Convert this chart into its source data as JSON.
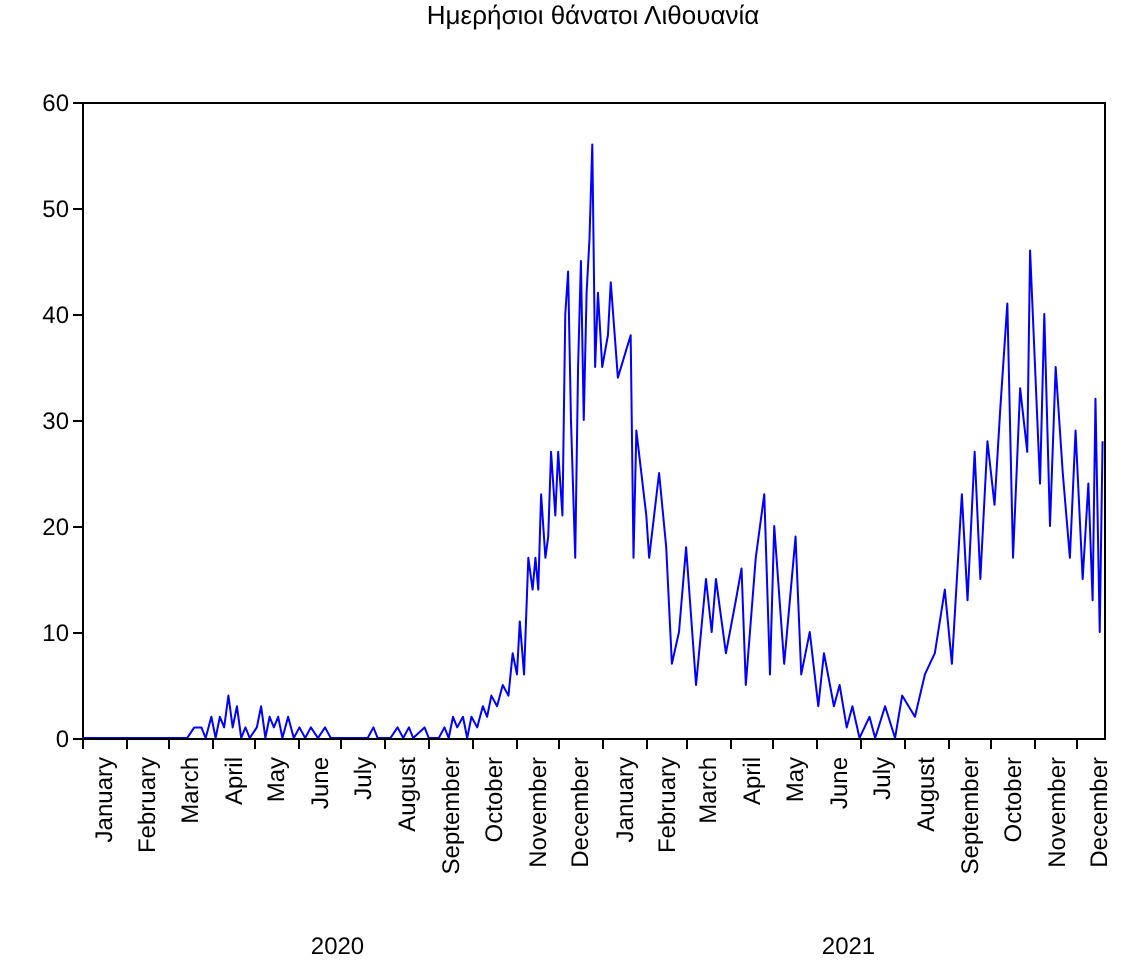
{
  "chart_data": {
    "type": "line",
    "title": "Ημερήσιοι θάνατοι Λιθουανία",
    "x": [
      "2020-01-01",
      "2020-02-01",
      "2020-03-01",
      "2020-03-15",
      "2020-03-20",
      "2020-03-25",
      "2020-03-28",
      "2020-04-01",
      "2020-04-04",
      "2020-04-07",
      "2020-04-10",
      "2020-04-13",
      "2020-04-16",
      "2020-04-19",
      "2020-04-22",
      "2020-04-25",
      "2020-04-28",
      "2020-05-03",
      "2020-05-06",
      "2020-05-09",
      "2020-05-12",
      "2020-05-15",
      "2020-05-18",
      "2020-05-21",
      "2020-05-25",
      "2020-05-29",
      "2020-06-02",
      "2020-06-06",
      "2020-06-10",
      "2020-06-15",
      "2020-06-20",
      "2020-06-24",
      "2020-07-01",
      "2020-07-20",
      "2020-07-24",
      "2020-07-27",
      "2020-08-05",
      "2020-08-10",
      "2020-08-14",
      "2020-08-18",
      "2020-08-21",
      "2020-08-29",
      "2020-09-01",
      "2020-09-08",
      "2020-09-12",
      "2020-09-15",
      "2020-09-18",
      "2020-09-21",
      "2020-09-25",
      "2020-09-28",
      "2020-10-01",
      "2020-10-05",
      "2020-10-09",
      "2020-10-12",
      "2020-10-15",
      "2020-10-19",
      "2020-10-23",
      "2020-10-27",
      "2020-10-30",
      "2020-11-02",
      "2020-11-04",
      "2020-11-07",
      "2020-11-10",
      "2020-11-13",
      "2020-11-15",
      "2020-11-17",
      "2020-11-19",
      "2020-11-22",
      "2020-11-24",
      "2020-11-26",
      "2020-11-29",
      "2020-12-01",
      "2020-12-04",
      "2020-12-06",
      "2020-12-08",
      "2020-12-10",
      "2020-12-13",
      "2020-12-15",
      "2020-12-17",
      "2020-12-19",
      "2020-12-21",
      "2020-12-23",
      "2020-12-25",
      "2020-12-27",
      "2020-12-29",
      "2021-01-01",
      "2021-01-05",
      "2021-01-07",
      "2021-01-12",
      "2021-01-21",
      "2021-01-23",
      "2021-01-25",
      "2021-02-01",
      "2021-02-03",
      "2021-02-10",
      "2021-02-15",
      "2021-02-19",
      "2021-02-24",
      "2021-03-01",
      "2021-03-08",
      "2021-03-15",
      "2021-03-19",
      "2021-03-22",
      "2021-03-29",
      "2021-04-05",
      "2021-04-09",
      "2021-04-12",
      "2021-04-19",
      "2021-04-25",
      "2021-04-29",
      "2021-05-02",
      "2021-05-09",
      "2021-05-17",
      "2021-05-21",
      "2021-05-27",
      "2021-06-02",
      "2021-06-06",
      "2021-06-13",
      "2021-06-17",
      "2021-06-22",
      "2021-06-26",
      "2021-07-01",
      "2021-07-08",
      "2021-07-12",
      "2021-07-19",
      "2021-07-26",
      "2021-07-31",
      "2021-08-09",
      "2021-08-16",
      "2021-08-23",
      "2021-08-30",
      "2021-09-04",
      "2021-09-11",
      "2021-09-15",
      "2021-09-20",
      "2021-09-24",
      "2021-09-29",
      "2021-10-04",
      "2021-10-08",
      "2021-10-13",
      "2021-10-17",
      "2021-10-22",
      "2021-10-27",
      "2021-10-29",
      "2021-11-05",
      "2021-11-08",
      "2021-11-12",
      "2021-11-16",
      "2021-11-21",
      "2021-11-26",
      "2021-11-30",
      "2021-12-05",
      "2021-12-09",
      "2021-12-12",
      "2021-12-14",
      "2021-12-17",
      "2021-12-19"
    ],
    "series": [
      {
        "color": "#0000ff",
        "values": [
          0,
          0,
          0,
          0,
          1,
          1,
          0,
          2,
          0,
          2,
          1,
          4,
          1,
          3,
          0,
          1,
          0,
          1,
          3,
          0,
          2,
          1,
          2,
          0,
          2,
          0,
          1,
          0,
          1,
          0,
          1,
          0,
          0,
          0,
          1,
          0,
          0,
          1,
          0,
          1,
          0,
          1,
          0,
          0,
          1,
          0,
          2,
          1,
          2,
          0,
          2,
          1,
          3,
          2,
          4,
          3,
          5,
          4,
          8,
          6,
          11,
          6,
          17,
          14,
          17,
          14,
          23,
          17,
          19,
          27,
          21,
          27,
          21,
          40,
          44,
          30,
          17,
          35,
          45,
          30,
          42,
          47,
          56,
          35,
          42,
          35,
          38,
          43,
          34,
          38,
          17,
          29,
          21,
          17,
          25,
          18,
          7,
          10,
          18,
          5,
          15,
          10,
          15,
          8,
          13,
          16,
          5,
          17,
          23,
          6,
          20,
          7,
          19,
          6,
          10,
          3,
          8,
          3,
          5,
          1,
          3,
          0,
          2,
          0,
          3,
          0,
          4,
          2,
          6,
          8,
          14,
          7,
          23,
          13,
          27,
          15,
          28,
          22,
          31,
          41,
          17,
          33,
          27,
          46,
          24,
          40,
          20,
          35,
          25,
          17,
          29,
          15,
          24,
          13,
          32,
          10,
          28
        ]
      }
    ],
    "xlim": [
      "2020-01-01",
      "2021-12-20"
    ],
    "xticks": [
      {
        "value": "2020-01-01",
        "label": null
      },
      {
        "value": "2020-01-16",
        "label": "January"
      },
      {
        "value": "2020-02-01",
        "label": null
      },
      {
        "value": "2020-02-15",
        "label": "February"
      },
      {
        "value": "2020-03-01",
        "label": null
      },
      {
        "value": "2020-03-16",
        "label": "March"
      },
      {
        "value": "2020-04-01",
        "label": null
      },
      {
        "value": "2020-04-16",
        "label": "April"
      },
      {
        "value": "2020-05-01",
        "label": null
      },
      {
        "value": "2020-05-16",
        "label": "May"
      },
      {
        "value": "2020-06-01",
        "label": null
      },
      {
        "value": "2020-06-16",
        "label": "June"
      },
      {
        "value": "2020-07-01",
        "label": null
      },
      {
        "value": "2020-07-16",
        "label": "July"
      },
      {
        "value": "2020-08-01",
        "label": null
      },
      {
        "value": "2020-08-16",
        "label": "August"
      },
      {
        "value": "2020-09-01",
        "label": null
      },
      {
        "value": "2020-09-16",
        "label": "September"
      },
      {
        "value": "2020-10-01",
        "label": null
      },
      {
        "value": "2020-10-16",
        "label": "October"
      },
      {
        "value": "2020-11-01",
        "label": null
      },
      {
        "value": "2020-11-16",
        "label": "November"
      },
      {
        "value": "2020-12-01",
        "label": null
      },
      {
        "value": "2020-12-16",
        "label": "December"
      },
      {
        "value": "2021-01-01",
        "label": null
      },
      {
        "value": "2021-01-16",
        "label": "January"
      },
      {
        "value": "2021-02-01",
        "label": null
      },
      {
        "value": "2021-02-15",
        "label": "February"
      },
      {
        "value": "2021-03-01",
        "label": null
      },
      {
        "value": "2021-03-16",
        "label": "March"
      },
      {
        "value": "2021-04-01",
        "label": null
      },
      {
        "value": "2021-04-16",
        "label": "April"
      },
      {
        "value": "2021-05-01",
        "label": null
      },
      {
        "value": "2021-05-16",
        "label": "May"
      },
      {
        "value": "2021-06-01",
        "label": null
      },
      {
        "value": "2021-06-16",
        "label": "June"
      },
      {
        "value": "2021-07-01",
        "label": null
      },
      {
        "value": "2021-07-16",
        "label": "July"
      },
      {
        "value": "2021-08-01",
        "label": null
      },
      {
        "value": "2021-08-16",
        "label": "August"
      },
      {
        "value": "2021-09-01",
        "label": null
      },
      {
        "value": "2021-09-16",
        "label": "September"
      },
      {
        "value": "2021-10-01",
        "label": null
      },
      {
        "value": "2021-10-16",
        "label": "October"
      },
      {
        "value": "2021-11-01",
        "label": null
      },
      {
        "value": "2021-11-16",
        "label": "November"
      },
      {
        "value": "2021-12-01",
        "label": null
      },
      {
        "value": "2021-12-16",
        "label": "December"
      }
    ],
    "ylim": [
      0,
      60
    ],
    "yticks": [
      0,
      10,
      20,
      30,
      40,
      50,
      60
    ],
    "annotations": [
      "2020",
      "2021"
    ],
    "grid": false,
    "marker": "none",
    "line_style": "solid"
  }
}
